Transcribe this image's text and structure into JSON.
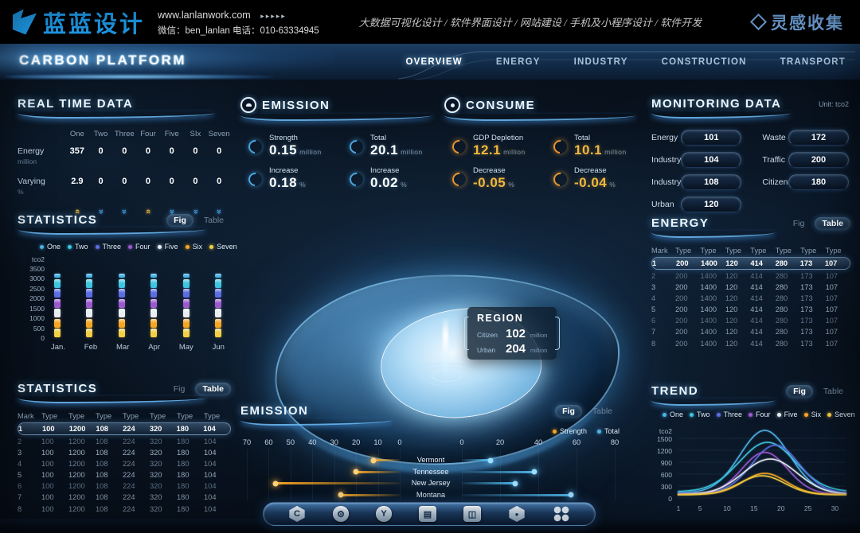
{
  "banner": {
    "logo_text": "蓝蓝设计",
    "website": "www.lanlanwork.com",
    "website_arrows": "▸▸▸▸▸",
    "contact": "微信：ben_lanlan    电话：010-63334945",
    "services": "大数据可视化设计 / 软件界面设计 / 网站建设 / 手机及小程序设计 / 软件开发",
    "collect_logo": "灵感收集",
    "brand_color": "#1e9ae8",
    "collect_color": "#6d9fd6"
  },
  "nav": {
    "title": "CARBON PLATFORM",
    "items": [
      {
        "label": "OVERVIEW",
        "active": true
      },
      {
        "label": "ENERGY",
        "active": false
      },
      {
        "label": "INDUSTRY",
        "active": false
      },
      {
        "label": "CONSTRUCTION",
        "active": false
      },
      {
        "label": "TRANSPORT",
        "active": false
      }
    ]
  },
  "series": [
    {
      "name": "One",
      "color": "#4db5e8"
    },
    {
      "name": "Two",
      "color": "#3fc6e0"
    },
    {
      "name": "Three",
      "color": "#5b6ee1"
    },
    {
      "name": "Four",
      "color": "#9b59d0"
    },
    {
      "name": "Five",
      "color": "#e8eef3"
    },
    {
      "name": "Six",
      "color": "#f5a623"
    },
    {
      "name": "Seven",
      "color": "#f2cf45"
    }
  ],
  "realtime": {
    "title": "REAL TIME DATA",
    "columns": [
      "One",
      "Two",
      "Three",
      "Four",
      "Five",
      "SIx",
      "Seven"
    ],
    "rows": [
      {
        "label": "Energy",
        "unit": "million",
        "values": [
          "357",
          "0",
          "0",
          "0",
          "0",
          "0",
          "0"
        ]
      },
      {
        "label": "Varying",
        "unit": "%",
        "values": [
          "2.9",
          "0",
          "0",
          "0",
          "0",
          "0",
          "0"
        ]
      }
    ],
    "trends": [
      "up",
      "down",
      "down",
      "up",
      "down",
      "down",
      "down"
    ]
  },
  "emission_panel": {
    "title": "EMISSION",
    "value_color": "white",
    "swirl": "blue",
    "stats": [
      {
        "label": "Strength",
        "value": "0.15",
        "unit": "million"
      },
      {
        "label": "Total",
        "value": "20.1",
        "unit": "million"
      },
      {
        "label": "Increase",
        "value": "0.18",
        "unit": "%"
      },
      {
        "label": "Increase",
        "value": "0.02",
        "unit": "%"
      }
    ]
  },
  "consume_panel": {
    "title": "CONSUME",
    "value_color": "gold",
    "swirl": "gold",
    "stats": [
      {
        "label": "GDP Depletion",
        "value": "12.1",
        "unit": "million"
      },
      {
        "label": "Total",
        "value": "10.1",
        "unit": "million"
      },
      {
        "label": "Decrease",
        "value": "-0.05",
        "unit": "%"
      },
      {
        "label": "Decrease",
        "value": "-0.04",
        "unit": "%"
      }
    ]
  },
  "monitoring": {
    "title": "MONITORING DATA",
    "unit_note": "Unit: tco2",
    "left": [
      {
        "label": "Energy",
        "value": "101"
      },
      {
        "label": "Industry",
        "value": "104"
      },
      {
        "label": "Industry",
        "value": "108"
      },
      {
        "label": "Urban",
        "value": "120"
      }
    ],
    "right": [
      {
        "label": "Waste",
        "value": "172"
      },
      {
        "label": "Traffic",
        "value": "200"
      },
      {
        "label": "Citizen",
        "value": "180"
      }
    ]
  },
  "region_popup": {
    "title": "REGION",
    "rows": [
      {
        "label": "Citizen",
        "value": "102",
        "unit": "million"
      },
      {
        "label": "Urban",
        "value": "204",
        "unit": "million"
      }
    ]
  },
  "statistics_fig": {
    "title": "STATISTICS",
    "toggle": {
      "fig": "Fig",
      "table": "Table",
      "active": "fig"
    },
    "chart_data": {
      "type": "bar",
      "stacked": true,
      "unit_label": "tco2",
      "y_ticks": [
        3500,
        3000,
        2500,
        2000,
        1500,
        1000,
        500,
        0
      ],
      "ymax": 3500,
      "categories": [
        "Jan.",
        "Feb",
        "Mar",
        "Apr",
        "May",
        "Jun"
      ],
      "segments_bottom_up": [
        {
          "series": "Seven",
          "value": 500
        },
        {
          "series": "Six",
          "value": 500
        },
        {
          "series": "Five",
          "value": 500
        },
        {
          "series": "Four",
          "value": 500
        },
        {
          "series": "Three",
          "value": 500
        },
        {
          "series": "Two",
          "value": 500
        },
        {
          "series": "One",
          "value": 300
        }
      ],
      "note": "every month column shows the same stacked total ≈3300"
    }
  },
  "energy_table": {
    "title": "ENERGY",
    "toggle": {
      "fig": "Fig",
      "table": "Table",
      "active": "table"
    },
    "headers": [
      "Mark",
      "Type",
      "Type",
      "Type",
      "Type",
      "Type",
      "Type",
      "Type"
    ],
    "rows": [
      [
        "1",
        "200",
        "1400",
        "120",
        "414",
        "280",
        "173",
        "107"
      ],
      [
        "2",
        "200",
        "1400",
        "120",
        "414",
        "280",
        "173",
        "107"
      ],
      [
        "3",
        "200",
        "1400",
        "120",
        "414",
        "280",
        "173",
        "107"
      ],
      [
        "4",
        "200",
        "1400",
        "120",
        "414",
        "280",
        "173",
        "107"
      ],
      [
        "5",
        "200",
        "1400",
        "120",
        "414",
        "280",
        "173",
        "107"
      ],
      [
        "6",
        "200",
        "1400",
        "120",
        "414",
        "280",
        "173",
        "107"
      ],
      [
        "7",
        "200",
        "1400",
        "120",
        "414",
        "280",
        "173",
        "107"
      ],
      [
        "8",
        "200",
        "1400",
        "120",
        "414",
        "280",
        "173",
        "107"
      ]
    ],
    "highlighted_row": 0
  },
  "statistics_table": {
    "title": "STATISTICS",
    "toggle": {
      "fig": "Fig",
      "table": "Table",
      "active": "table"
    },
    "headers": [
      "Mark",
      "Type",
      "Type",
      "Type",
      "Type",
      "Type",
      "Type",
      "Type"
    ],
    "rows": [
      [
        "1",
        "100",
        "1200",
        "108",
        "224",
        "320",
        "180",
        "104"
      ],
      [
        "2",
        "100",
        "1200",
        "108",
        "224",
        "320",
        "180",
        "104"
      ],
      [
        "3",
        "100",
        "1200",
        "108",
        "224",
        "320",
        "180",
        "104"
      ],
      [
        "4",
        "100",
        "1200",
        "108",
        "224",
        "320",
        "180",
        "104"
      ],
      [
        "5",
        "100",
        "1200",
        "108",
        "224",
        "320",
        "180",
        "104"
      ],
      [
        "6",
        "100",
        "1200",
        "108",
        "224",
        "320",
        "180",
        "104"
      ],
      [
        "7",
        "100",
        "1200",
        "108",
        "224",
        "320",
        "180",
        "104"
      ],
      [
        "8",
        "100",
        "1200",
        "108",
        "224",
        "320",
        "180",
        "104"
      ]
    ],
    "highlighted_row": 0
  },
  "emission_chart": {
    "title": "EMISSION",
    "toggle": {
      "fig": "Fig",
      "table": "Table",
      "active": "fig"
    },
    "legend": [
      {
        "name": "Strength",
        "color": "#f5a623"
      },
      {
        "name": "Total",
        "color": "#4db5e8"
      }
    ],
    "chart_data": {
      "type": "bar",
      "orientation": "diverging-horizontal",
      "left_ticks": [
        70,
        60,
        50,
        40,
        30,
        20,
        10,
        0
      ],
      "right_ticks": [
        0,
        20,
        40,
        60,
        80
      ],
      "left_max": 70,
      "right_max": 80,
      "rows": [
        {
          "label": "Vermont",
          "strength": 12,
          "total": 15
        },
        {
          "label": "Tennessee",
          "strength": 20,
          "total": 38
        },
        {
          "label": "New Jersey",
          "strength": 57,
          "total": 28
        },
        {
          "label": "Montana",
          "strength": 27,
          "total": 57
        }
      ]
    }
  },
  "trend_chart": {
    "title": "TREND",
    "toggle": {
      "fig": "Fig",
      "table": "Table",
      "active": "fig"
    },
    "chart_data": {
      "type": "line",
      "unit_label": "tco2",
      "y_ticks": [
        1500,
        1200,
        900,
        600,
        300,
        0
      ],
      "ymax": 1800,
      "x_ticks": [
        1,
        5,
        10,
        15,
        20,
        25,
        30
      ],
      "x_range": [
        1,
        32
      ],
      "series": [
        {
          "name": "One",
          "color": "#4db5e8",
          "peak": 1700,
          "center": 17,
          "sigma": 4.6,
          "base": 130
        },
        {
          "name": "Two",
          "color": "#3fc6e0",
          "peak": 1400,
          "center": 17.5,
          "sigma": 5.2,
          "base": 160
        },
        {
          "name": "Three",
          "color": "#5b6ee1",
          "peak": 1330,
          "center": 19,
          "sigma": 4.4,
          "base": 120
        },
        {
          "name": "Four",
          "color": "#9b59d0",
          "peak": 1150,
          "center": 17,
          "sigma": 4.2,
          "base": 100
        },
        {
          "name": "Five",
          "color": "#e8eef3",
          "peak": 980,
          "center": 18,
          "sigma": 5.0,
          "base": 90
        },
        {
          "name": "Six",
          "color": "#f5a623",
          "peak": 620,
          "center": 17,
          "sigma": 4.0,
          "base": 90
        },
        {
          "name": "Seven",
          "color": "#f2cf45",
          "peak": 560,
          "center": 16.5,
          "sigma": 4.2,
          "base": 80
        }
      ]
    }
  },
  "dock": {
    "items": [
      {
        "name": "carbon-icon",
        "glyph": "C",
        "shape": "hex"
      },
      {
        "name": "gear-icon",
        "glyph": "⚙",
        "shape": "round"
      },
      {
        "name": "energy-icon",
        "glyph": "Y",
        "shape": "round"
      },
      {
        "name": "kiosk-icon",
        "glyph": "▤",
        "shape": "rect"
      },
      {
        "name": "monitor-icon",
        "glyph": "◫",
        "shape": "rect"
      },
      {
        "name": "nut-icon",
        "glyph": "●",
        "shape": "hex"
      },
      {
        "name": "apps-icon",
        "glyph": "",
        "shape": "dots"
      }
    ]
  }
}
